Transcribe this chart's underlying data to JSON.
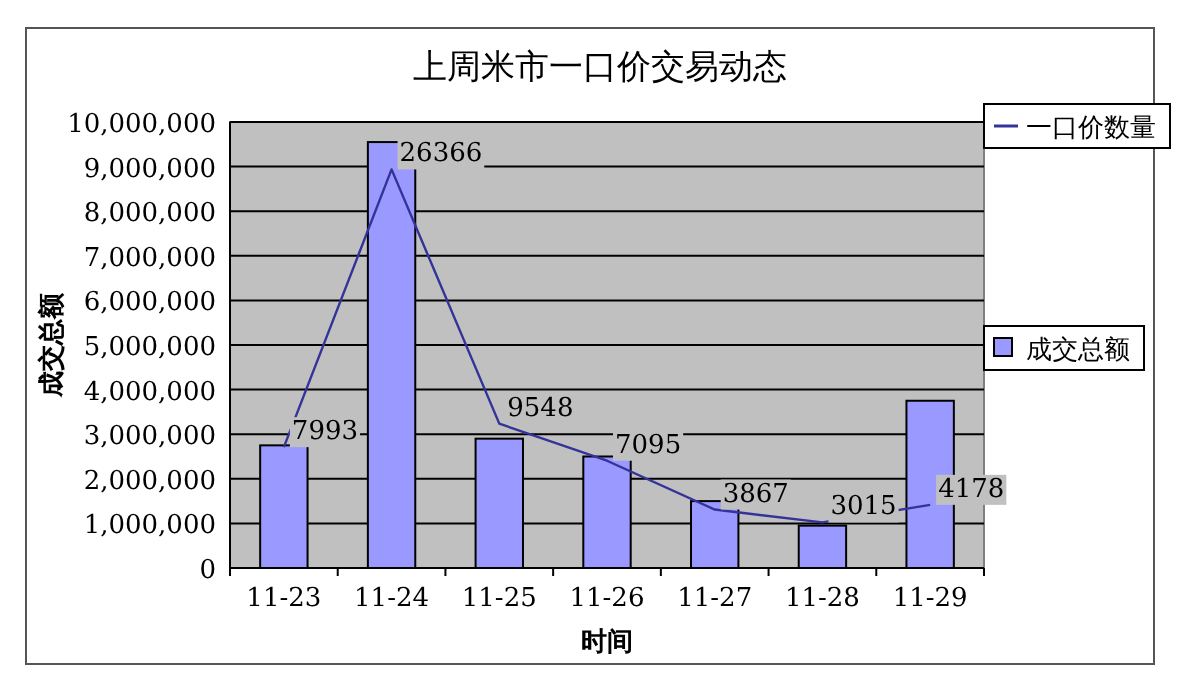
{
  "chart_data": {
    "type": "bar",
    "title": "上周米市一口价交易动态",
    "xlabel": "时间",
    "ylabel": "成交总额",
    "categories": [
      "11-23",
      "11-24",
      "11-25",
      "11-26",
      "11-27",
      "11-28",
      "11-29"
    ],
    "series": [
      {
        "name": "成交总额",
        "color": "#9999ff",
        "values": [
          2750000,
          9550000,
          2900000,
          2500000,
          1500000,
          950000,
          3750000
        ]
      },
      {
        "name": "一口价数量",
        "type": "line",
        "axis": "y2",
        "color": "#333399",
        "values": [
          7993,
          26366,
          9548,
          7095,
          3867,
          3015,
          4178
        ],
        "value_labels": [
          "7993",
          "26366",
          "9548",
          "7095",
          "3867",
          "3015",
          "4178"
        ]
      }
    ],
    "ylim": [
      0,
      10000000
    ],
    "yticks": [
      {
        "value": 0,
        "label": "0"
      },
      {
        "value": 1000000,
        "label": "1,000,000"
      },
      {
        "value": 2000000,
        "label": "2,000,000"
      },
      {
        "value": 3000000,
        "label": "3,000,000"
      },
      {
        "value": 4000000,
        "label": "4,000,000"
      },
      {
        "value": 5000000,
        "label": "5,000,000"
      },
      {
        "value": 6000000,
        "label": "6,000,000"
      },
      {
        "value": 7000000,
        "label": "7,000,000"
      },
      {
        "value": 8000000,
        "label": "8,000,000"
      },
      {
        "value": 9000000,
        "label": "9,000,000"
      },
      {
        "value": 10000000,
        "label": "10,000,000"
      }
    ],
    "y2lim": [
      0,
      29500
    ],
    "grid": "y",
    "legend": "right"
  }
}
